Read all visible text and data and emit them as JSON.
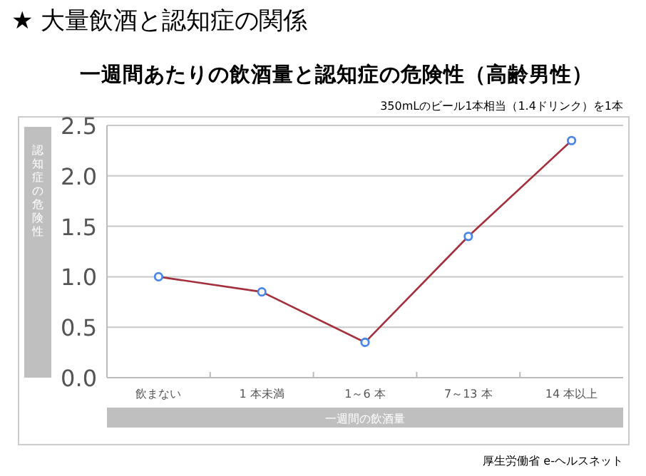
{
  "chart_data": {
    "type": "line",
    "title": "★ 大量飲酒と認知症の関係",
    "subtitle": "一週間あたりの飲酒量と認知症の危険性（高齢男性）",
    "xlabel": "一週間の飲酒量",
    "ylabel": "認知症の危険性",
    "annotations": [
      "350mLのビール1本相当（1.4ドリンク）を1本",
      "厚生労働省 e-ヘルスネット"
    ],
    "categories": [
      "飲まない",
      "1 本未満",
      "1～6 本",
      "7～13 本",
      "14 本以上"
    ],
    "series": [
      {
        "color": "#a3303c",
        "values": [
          1.0,
          0.85,
          0.35,
          1.4,
          2.35
        ]
      }
    ],
    "ylim": [
      0,
      2.5
    ],
    "yticks": [
      {
        "value": 0,
        "label": "0.0"
      },
      {
        "value": 0.5,
        "label": "0.5"
      },
      {
        "value": 1,
        "label": "1.0"
      },
      {
        "value": 1.5,
        "label": "1.5"
      },
      {
        "value": 2,
        "label": "2.0"
      },
      {
        "value": 2.5,
        "label": "2.5"
      }
    ],
    "grid": "y",
    "marker": "circle"
  }
}
